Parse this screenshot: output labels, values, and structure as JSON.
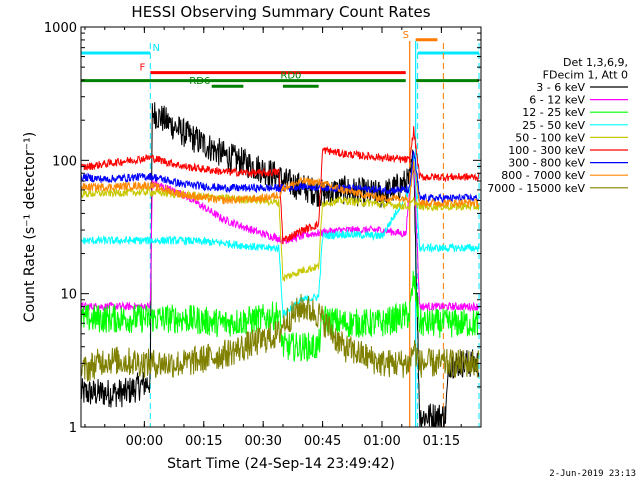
{
  "chart_data": {
    "type": "line",
    "title": "HESSI Observing Summary Count Rates",
    "xlabel": "Start Time (24-Sep-14 23:49:42)",
    "ylabel": "Count Rate (s⁻¹ detector⁻¹)",
    "x_range_min": [
      -6,
      27
    ],
    "y_range": [
      1,
      1000
    ],
    "y_scale": "log",
    "x_ticks": [
      {
        "t": 10,
        "label": "00:00"
      },
      {
        "t": 25,
        "label": "00:15"
      },
      {
        "t": 40,
        "label": "00:30"
      },
      {
        "t": 55,
        "label": "00:45"
      },
      {
        "t": 70,
        "label": "01:00"
      },
      {
        "t": 85,
        "label": "01:15"
      }
    ],
    "y_ticks": [
      {
        "v": 1,
        "label": "1"
      },
      {
        "v": 10,
        "label": "10"
      },
      {
        "v": 100,
        "label": "100"
      },
      {
        "v": 1000,
        "label": "1000"
      }
    ],
    "legend_header": [
      "Det 1,3,6,9,",
      "FDecim 1, Att 0"
    ],
    "legend_placement": "right",
    "footer_date": "2-Jun-2019 23:13",
    "x_domain": [
      -6,
      95
    ],
    "dashed_vlines": [
      {
        "t": 11.5,
        "color": "#00e8ff"
      },
      {
        "t": 79,
        "color": "#00e8ff"
      },
      {
        "t": 85.5,
        "color": "#ff7a00"
      },
      {
        "t": 94.5,
        "color": "#00e8ff"
      }
    ],
    "solid_vlines": [
      {
        "t": 77,
        "color": "#ff7a00"
      },
      {
        "t": 78.5,
        "color": "#00e8ff"
      }
    ],
    "flags": [
      {
        "label": "N",
        "color": "#00e8ff",
        "segments": [
          [
            -6,
            11.5
          ],
          [
            79,
            94.5
          ]
        ],
        "level": 0.935,
        "label_t": 13
      },
      {
        "label": "S",
        "color": "#ff7a00",
        "segments": [
          [
            78.5,
            84
          ]
        ],
        "level": 0.968,
        "label_t": 76
      },
      {
        "label": "F",
        "color": "#ff0000",
        "segments": [
          [
            11.5,
            76
          ]
        ],
        "level": 0.886,
        "label_t": 9.5
      },
      {
        "label": "RD0",
        "color": "#008000",
        "segments": [
          [
            -6,
            76
          ],
          [
            78.5,
            94.5
          ]
        ],
        "level": 0.866,
        "label_t": 47
      },
      {
        "label": "RD6",
        "color": "#008000",
        "segments": [
          [
            27,
            35
          ],
          [
            45,
            54
          ]
        ],
        "level": 0.852,
        "label_t": 24
      }
    ],
    "series": [
      {
        "name": "3 - 6 keV",
        "color": "#000000",
        "points": [
          [
            -6,
            1.8
          ],
          [
            5,
            1.8
          ],
          [
            11.5,
            2.2
          ],
          [
            12,
            230
          ],
          [
            20,
            160
          ],
          [
            30,
            110
          ],
          [
            40,
            85
          ],
          [
            44,
            75
          ],
          [
            45,
            70
          ],
          [
            55,
            56
          ],
          [
            60,
            60
          ],
          [
            70,
            55
          ],
          [
            77,
            70
          ],
          [
            78,
            110
          ],
          [
            79.5,
            1.2
          ],
          [
            86,
            1.2
          ],
          [
            87,
            3
          ],
          [
            94.5,
            3
          ]
        ]
      },
      {
        "name": "6 - 12 keV",
        "color": "#ff00ff",
        "points": [
          [
            -6,
            8
          ],
          [
            11.5,
            8
          ],
          [
            12,
            68
          ],
          [
            20,
            55
          ],
          [
            30,
            36
          ],
          [
            40,
            28
          ],
          [
            44,
            26
          ],
          [
            45,
            25
          ],
          [
            52,
            28
          ],
          [
            60,
            30
          ],
          [
            70,
            30
          ],
          [
            76,
            28
          ],
          [
            77,
            60
          ],
          [
            78,
            110
          ],
          [
            79.5,
            8
          ],
          [
            86,
            8
          ],
          [
            87,
            8
          ],
          [
            94.5,
            8
          ]
        ]
      },
      {
        "name": "12 - 25 keV",
        "color": "#00ff00",
        "points": [
          [
            -6,
            6.5
          ],
          [
            5,
            6.5
          ],
          [
            11.5,
            6.5
          ],
          [
            20,
            6.5
          ],
          [
            30,
            6
          ],
          [
            40,
            6.5
          ],
          [
            44,
            7
          ],
          [
            45,
            4
          ],
          [
            50,
            4
          ],
          [
            54,
            4
          ],
          [
            55,
            6.5
          ],
          [
            60,
            6
          ],
          [
            70,
            6
          ],
          [
            77,
            7
          ],
          [
            78,
            13
          ],
          [
            79.5,
            6
          ],
          [
            86,
            6
          ],
          [
            87,
            6
          ],
          [
            94.5,
            6
          ]
        ]
      },
      {
        "name": "25 - 50 keV",
        "color": "#00ffff",
        "points": [
          [
            -6,
            25
          ],
          [
            11.5,
            25
          ],
          [
            20,
            25
          ],
          [
            30,
            24
          ],
          [
            40,
            22
          ],
          [
            44,
            22
          ],
          [
            45,
            7
          ],
          [
            50,
            9
          ],
          [
            54,
            9.5
          ],
          [
            55,
            27
          ],
          [
            60,
            28
          ],
          [
            70,
            27
          ],
          [
            77,
            60
          ],
          [
            78,
            110
          ],
          [
            79.5,
            22
          ],
          [
            86,
            22
          ],
          [
            87,
            22
          ],
          [
            94.5,
            22
          ]
        ]
      },
      {
        "name": "50 - 100 keV",
        "color": "#c8c800",
        "points": [
          [
            -6,
            56
          ],
          [
            11.5,
            58
          ],
          [
            20,
            55
          ],
          [
            30,
            52
          ],
          [
            40,
            50
          ],
          [
            44,
            48
          ],
          [
            45,
            13
          ],
          [
            50,
            15
          ],
          [
            54,
            16
          ],
          [
            55,
            48
          ],
          [
            60,
            50
          ],
          [
            70,
            47
          ],
          [
            77,
            45
          ],
          [
            78,
            50
          ],
          [
            79.5,
            45
          ],
          [
            86,
            45
          ],
          [
            87,
            45
          ],
          [
            94.5,
            45
          ]
        ]
      },
      {
        "name": "100 - 300 keV",
        "color": "#ff0000",
        "points": [
          [
            -6,
            88
          ],
          [
            0,
            94
          ],
          [
            11.5,
            105
          ],
          [
            20,
            90
          ],
          [
            30,
            82
          ],
          [
            40,
            80
          ],
          [
            44,
            82
          ],
          [
            45,
            25
          ],
          [
            50,
            30
          ],
          [
            54,
            33
          ],
          [
            55,
            120
          ],
          [
            60,
            112
          ],
          [
            70,
            105
          ],
          [
            77,
            100
          ],
          [
            78,
            170
          ],
          [
            79.5,
            75
          ],
          [
            86,
            75
          ],
          [
            87,
            75
          ],
          [
            94.5,
            75
          ]
        ]
      },
      {
        "name": "300 - 800 keV",
        "color": "#0000ff",
        "points": [
          [
            -6,
            75
          ],
          [
            0,
            72
          ],
          [
            11.5,
            76
          ],
          [
            20,
            66
          ],
          [
            30,
            62
          ],
          [
            40,
            62
          ],
          [
            45,
            62
          ],
          [
            50,
            64
          ],
          [
            54,
            63
          ],
          [
            60,
            62
          ],
          [
            70,
            60
          ],
          [
            77,
            60
          ],
          [
            78,
            120
          ],
          [
            79.5,
            52
          ],
          [
            86,
            52
          ],
          [
            87,
            52
          ],
          [
            94.5,
            52
          ]
        ]
      },
      {
        "name": "800 - 7000 keV",
        "color": "#ff8800",
        "points": [
          [
            -6,
            63
          ],
          [
            0,
            63
          ],
          [
            11.5,
            65
          ],
          [
            20,
            55
          ],
          [
            30,
            50
          ],
          [
            40,
            52
          ],
          [
            44,
            55
          ],
          [
            45,
            62
          ],
          [
            50,
            70
          ],
          [
            54,
            68
          ],
          [
            60,
            60
          ],
          [
            70,
            52
          ],
          [
            77,
            52
          ],
          [
            78,
            100
          ],
          [
            79.5,
            48
          ],
          [
            86,
            48
          ],
          [
            87,
            48
          ],
          [
            94.5,
            48
          ]
        ]
      },
      {
        "name": "7000 - 15000 keV",
        "color": "#808000",
        "points": [
          [
            -6,
            2.6
          ],
          [
            0,
            3.2
          ],
          [
            11.5,
            3
          ],
          [
            20,
            3
          ],
          [
            30,
            3.5
          ],
          [
            40,
            4.5
          ],
          [
            44,
            5
          ],
          [
            45,
            6
          ],
          [
            50,
            8
          ],
          [
            54,
            7
          ],
          [
            60,
            4
          ],
          [
            70,
            3
          ],
          [
            77,
            3
          ],
          [
            78,
            4
          ],
          [
            79.5,
            3
          ],
          [
            86,
            3
          ],
          [
            87,
            3
          ],
          [
            94.5,
            3
          ]
        ]
      }
    ]
  }
}
